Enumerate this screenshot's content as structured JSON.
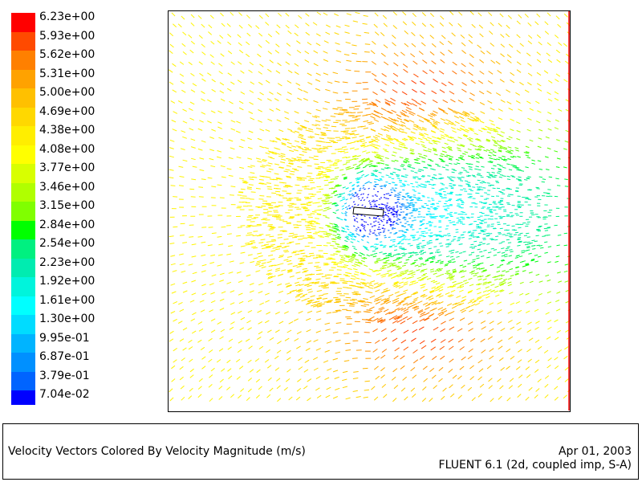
{
  "chart_data": {
    "type": "vector-field",
    "colorbar": {
      "labels": [
        "6.23e+00",
        "5.93e+00",
        "5.62e+00",
        "5.31e+00",
        "5.00e+00",
        "4.69e+00",
        "4.38e+00",
        "4.08e+00",
        "3.77e+00",
        "3.46e+00",
        "3.15e+00",
        "2.84e+00",
        "2.54e+00",
        "2.23e+00",
        "1.92e+00",
        "1.61e+00",
        "1.30e+00",
        "9.95e-01",
        "6.87e-01",
        "3.79e-01",
        "7.04e-02"
      ],
      "values": [
        6.23,
        5.93,
        5.62,
        5.31,
        5.0,
        4.69,
        4.38,
        4.08,
        3.77,
        3.46,
        3.15,
        2.84,
        2.54,
        2.23,
        1.92,
        1.61,
        1.3,
        0.995,
        0.687,
        0.379,
        0.0704
      ],
      "colors": [
        "#ff0000",
        "#ff4a00",
        "#ff8000",
        "#ffa200",
        "#ffc000",
        "#ffd800",
        "#ffee00",
        "#ffff00",
        "#d8ff00",
        "#b0ff00",
        "#80ff00",
        "#00ff00",
        "#00f080",
        "#00ecb0",
        "#00f4dc",
        "#00ffff",
        "#00dcff",
        "#00b4ff",
        "#0090ff",
        "#0064ff",
        "#0000ff"
      ]
    },
    "title": "Velocity Vectors Colored By Velocity Magnitude (m/s)",
    "date": "Apr 01, 2003",
    "software": "FLUENT 6.1 (2d, coupled imp, S-A)"
  }
}
